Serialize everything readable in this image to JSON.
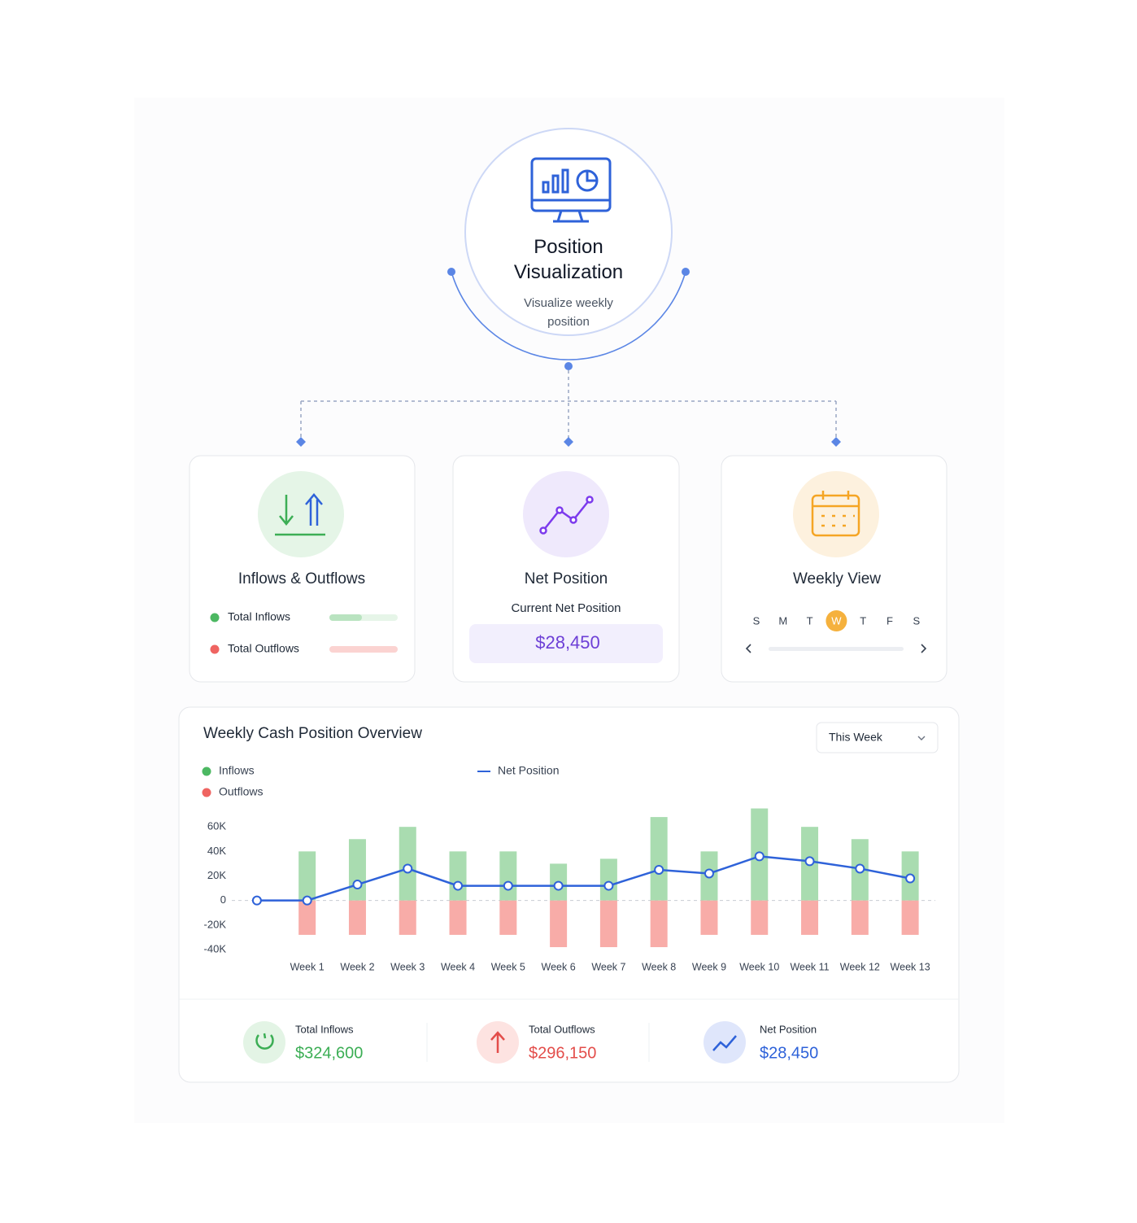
{
  "hub": {
    "title": "Position Visualization",
    "subtitle": "Visualize weekly position"
  },
  "cards": [
    {
      "title": "Inflows & Outflows",
      "items": [
        "Total Inflows",
        "Total Outflows"
      ]
    },
    {
      "title": "Net Position",
      "label": "Current Net Position",
      "value": "$28,450"
    },
    {
      "title": "Weekly View",
      "days": [
        "S",
        "M",
        "T",
        "W",
        "T",
        "F",
        "S"
      ]
    }
  ],
  "overview": {
    "dropdown": "This Week",
    "summary": [
      {
        "label": "Total Inflows",
        "value": "$324,600"
      },
      {
        "label": "Total Outflows",
        "value": "$296,150"
      },
      {
        "label": "Net Position",
        "value": "$28,450"
      }
    ]
  },
  "chart_data": {
    "type": "bar",
    "title": "Weekly Cash Position Overview",
    "categories": [
      null,
      "Week 1",
      "Week 2",
      "Week 3",
      "Week 4",
      "Week 5",
      "Week 6",
      "Week 7",
      "Week 8",
      "Week 9",
      "Week 10",
      "Week 11",
      "Week 12",
      "Week 13"
    ],
    "series": [
      {
        "name": "Inflows",
        "color": "#a9dcb0",
        "values": [
          null,
          40000,
          50000,
          60000,
          40000,
          40000,
          30000,
          34000,
          68000,
          40000,
          75000,
          60000,
          50000,
          40000
        ]
      },
      {
        "name": "Outflows",
        "color": "#f8aca8",
        "values": [
          null,
          -28000,
          -28000,
          -28000,
          -28000,
          -28000,
          -38000,
          -38000,
          -38000,
          -28000,
          -28000,
          -28000,
          -28000,
          -28000
        ]
      },
      {
        "name": "Net Position",
        "type": "line",
        "color": "#2e62d9",
        "values": [
          0,
          0,
          13000,
          26000,
          12000,
          12000,
          12000,
          12000,
          25000,
          22000,
          36000,
          32000,
          26000,
          18000
        ]
      }
    ],
    "ylim": [
      -40000,
      80000
    ],
    "yticks": [
      {
        "value": 60000,
        "label": "60K"
      },
      {
        "value": 40000,
        "label": "40K"
      },
      {
        "value": 20000,
        "label": "20K"
      },
      0,
      {
        "value": -20000,
        "label": "-20K"
      },
      {
        "value": -40000,
        "label": "-40K"
      }
    ],
    "zero_line": true
  }
}
